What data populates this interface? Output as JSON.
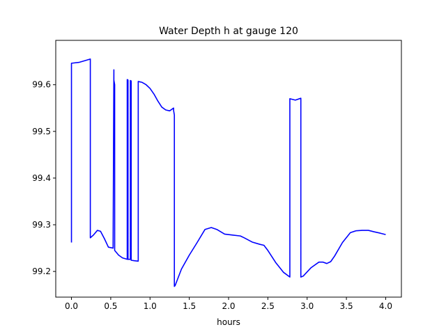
{
  "chart_data": {
    "type": "line",
    "title": "Water Depth h at gauge 120",
    "xlabel": "hours",
    "ylabel": "",
    "xlim": [
      -0.2,
      4.2
    ],
    "ylim": [
      99.145,
      99.695
    ],
    "x_ticks": [
      0.0,
      0.5,
      1.0,
      1.5,
      2.0,
      2.5,
      3.0,
      3.5,
      4.0
    ],
    "x_tick_labels": [
      "0.0",
      "0.5",
      "1.0",
      "1.5",
      "2.0",
      "2.5",
      "3.0",
      "3.5",
      "4.0"
    ],
    "y_ticks": [
      99.2,
      99.3,
      99.4,
      99.5,
      99.6
    ],
    "y_tick_labels": [
      "99.2",
      "99.3",
      "99.4",
      "99.5",
      "99.6"
    ],
    "grid": false,
    "legend": "none",
    "series": [
      {
        "color": "#0000ff",
        "x": [
          0.0,
          0.0,
          0.1,
          0.18,
          0.24,
          0.24,
          0.28,
          0.33,
          0.37,
          0.42,
          0.47,
          0.53,
          0.54,
          0.54,
          0.55,
          0.55,
          0.6,
          0.65,
          0.71,
          0.71,
          0.72,
          0.72,
          0.75,
          0.75,
          0.76,
          0.76,
          0.8,
          0.85,
          0.85,
          0.9,
          0.95,
          1.0,
          1.05,
          1.1,
          1.15,
          1.2,
          1.25,
          1.3,
          1.3,
          1.31,
          1.31,
          1.32,
          1.4,
          1.5,
          1.6,
          1.7,
          1.78,
          1.85,
          1.95,
          2.05,
          2.15,
          2.2,
          2.3,
          2.4,
          2.45,
          2.5,
          2.6,
          2.7,
          2.78,
          2.78,
          2.85,
          2.92,
          2.92,
          2.95,
          3.05,
          3.15,
          3.2,
          3.25,
          3.3,
          3.35,
          3.45,
          3.55,
          3.62,
          3.7,
          3.78,
          3.85,
          3.93,
          4.0
        ],
        "y": [
          99.262,
          99.646,
          99.648,
          99.652,
          99.655,
          99.272,
          99.278,
          99.288,
          99.286,
          99.27,
          99.252,
          99.25,
          99.632,
          99.61,
          99.6,
          99.245,
          99.235,
          99.229,
          99.226,
          99.611,
          99.61,
          99.226,
          99.226,
          99.609,
          99.608,
          99.224,
          99.223,
          99.222,
          99.607,
          99.605,
          99.6,
          99.592,
          99.58,
          99.565,
          99.552,
          99.546,
          99.544,
          99.55,
          99.545,
          99.535,
          99.168,
          99.17,
          99.205,
          99.235,
          99.262,
          99.29,
          99.294,
          99.29,
          99.28,
          99.278,
          99.276,
          99.272,
          99.263,
          99.258,
          99.256,
          99.245,
          99.219,
          99.198,
          99.188,
          99.57,
          99.567,
          99.571,
          99.188,
          99.19,
          99.208,
          99.22,
          99.22,
          99.217,
          99.221,
          99.233,
          99.262,
          99.283,
          99.287,
          99.288,
          99.288,
          99.285,
          99.282,
          99.279
        ]
      }
    ]
  }
}
